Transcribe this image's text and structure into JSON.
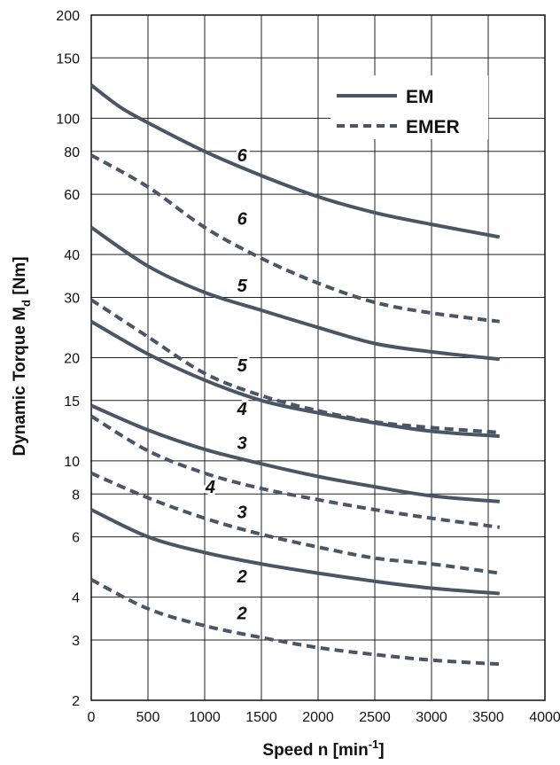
{
  "chart_data": {
    "type": "line",
    "title": "",
    "xlabel": "Speed n [min",
    "xlabel_sup": "-1",
    "xlabel_end": "]",
    "ylabel": "Dynamic Torque M",
    "ylabel_sub": "d",
    "ylabel_end": " [Nm]",
    "xlim": [
      0,
      4000
    ],
    "ylim": [
      2,
      200
    ],
    "yscale": "log",
    "grid": true,
    "x_ticks": [
      0,
      500,
      1000,
      1500,
      2000,
      2500,
      3000,
      3500,
      4000
    ],
    "y_ticks": [
      2,
      3,
      4,
      6,
      8,
      10,
      15,
      20,
      30,
      40,
      60,
      80,
      100,
      150,
      200
    ],
    "legend": {
      "position": "top-right",
      "entries": [
        {
          "label": "EM",
          "style": "solid"
        },
        {
          "label": "EMER",
          "style": "dashed"
        }
      ]
    },
    "colors": {
      "line": "#4a5666",
      "grid": "#222222"
    },
    "series": [
      {
        "label": "6",
        "style": "solid",
        "x": [
          0,
          250,
          500,
          1000,
          1500,
          2000,
          2500,
          3000,
          3600
        ],
        "y": [
          125,
          108,
          97,
          80,
          68,
          59,
          53,
          49,
          45
        ],
        "label_at": [
          1330,
          78
        ]
      },
      {
        "label": "6",
        "style": "dashed",
        "x": [
          0,
          500,
          1000,
          1500,
          2000,
          2500,
          3000,
          3600
        ],
        "y": [
          78,
          63,
          48,
          39,
          33,
          29,
          27,
          25.5
        ],
        "label_at": [
          1330,
          51
        ]
      },
      {
        "label": "5",
        "style": "solid",
        "x": [
          0,
          500,
          1000,
          1500,
          2000,
          2500,
          3000,
          3600
        ],
        "y": [
          48,
          37,
          31,
          27.5,
          24.5,
          22,
          20.8,
          19.8
        ],
        "label_at": [
          1330,
          32.5
        ]
      },
      {
        "label": "5",
        "style": "dashed",
        "x": [
          0,
          500,
          1000,
          1500,
          2000,
          2500,
          3000,
          3600
        ],
        "y": [
          29.5,
          23,
          18,
          15.5,
          14,
          13,
          12.5,
          12.1
        ],
        "label_at": [
          1330,
          19
        ]
      },
      {
        "label": "4",
        "style": "solid",
        "x": [
          0,
          500,
          1000,
          1500,
          2000,
          2500,
          3000,
          3600
        ],
        "y": [
          25.5,
          20.5,
          17.2,
          15,
          13.8,
          12.9,
          12.2,
          11.8
        ],
        "label_at": [
          1330,
          14.2
        ]
      },
      {
        "label": "3",
        "style": "solid",
        "x": [
          0,
          500,
          1000,
          1500,
          2000,
          2500,
          3000,
          3600
        ],
        "y": [
          14.5,
          12.3,
          10.8,
          9.8,
          9,
          8.4,
          7.9,
          7.6
        ],
        "label_at": [
          1330,
          11.3
        ]
      },
      {
        "label": "4",
        "style": "dashed",
        "x": [
          0,
          500,
          1000,
          1500,
          2000,
          2500,
          3000,
          3600
        ],
        "y": [
          13.5,
          10.7,
          9.2,
          8.3,
          7.7,
          7.2,
          6.8,
          6.4
        ],
        "label_at": [
          1050,
          8.4
        ]
      },
      {
        "label": "3",
        "style": "dashed",
        "x": [
          0,
          500,
          1000,
          1500,
          2000,
          2500,
          3000,
          3600
        ],
        "y": [
          9.2,
          7.8,
          6.8,
          6.1,
          5.6,
          5.2,
          5,
          4.7
        ],
        "label_at": [
          1330,
          7.1
        ]
      },
      {
        "label": "2",
        "style": "solid",
        "x": [
          0,
          500,
          1000,
          1500,
          2000,
          2500,
          3000,
          3600
        ],
        "y": [
          7.2,
          6,
          5.4,
          5,
          4.7,
          4.45,
          4.25,
          4.1
        ],
        "label_at": [
          1330,
          4.6
        ]
      },
      {
        "label": "2",
        "style": "dashed",
        "x": [
          0,
          500,
          1000,
          1500,
          2000,
          2500,
          3000,
          3600
        ],
        "y": [
          4.5,
          3.7,
          3.3,
          3.05,
          2.85,
          2.72,
          2.62,
          2.55
        ],
        "label_at": [
          1330,
          3.6
        ]
      }
    ]
  }
}
